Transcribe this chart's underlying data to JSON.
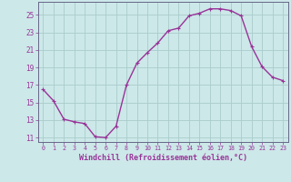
{
  "x": [
    0,
    1,
    2,
    3,
    4,
    5,
    6,
    7,
    8,
    9,
    10,
    11,
    12,
    13,
    14,
    15,
    16,
    17,
    18,
    19,
    20,
    21,
    22,
    23
  ],
  "y": [
    16.5,
    15.2,
    13.1,
    12.8,
    12.6,
    11.1,
    11.0,
    12.3,
    17.0,
    19.5,
    20.7,
    21.8,
    23.2,
    23.5,
    24.9,
    25.2,
    25.7,
    25.7,
    25.5,
    24.9,
    21.4,
    19.1,
    17.9,
    17.5
  ],
  "line_color": "#993399",
  "marker": "+",
  "marker_size": 3.5,
  "marker_linewidth": 0.8,
  "background_color": "#cce8e8",
  "grid_color": "#aacccc",
  "xlabel": "Windchill (Refroidissement éolien,°C)",
  "xlim_min": -0.5,
  "xlim_max": 23.5,
  "ylim_min": 10.5,
  "ylim_max": 26.5,
  "yticks": [
    11,
    13,
    15,
    17,
    19,
    21,
    23,
    25
  ],
  "xticks": [
    0,
    1,
    2,
    3,
    4,
    5,
    6,
    7,
    8,
    9,
    10,
    11,
    12,
    13,
    14,
    15,
    16,
    17,
    18,
    19,
    20,
    21,
    22,
    23
  ],
  "tick_color": "#993399",
  "label_color": "#993399",
  "spine_color": "#666688",
  "font_family": "monospace",
  "xtick_fontsize": 4.8,
  "ytick_fontsize": 5.5,
  "xlabel_fontsize": 6.0,
  "linewidth": 1.0
}
